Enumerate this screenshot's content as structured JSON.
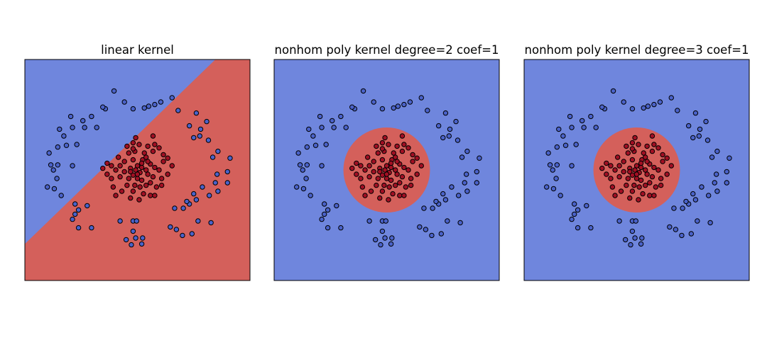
{
  "colors": {
    "class_a_region": "#6f86dd",
    "class_b_region": "#d4605b",
    "class_a_point": "#4a62c9",
    "class_b_point": "#a10f23",
    "point_edge": "#000000"
  },
  "chart_data": [
    {
      "type": "scatter",
      "title": "linear kernel",
      "xlabel": "",
      "ylabel": "",
      "xlim": [
        -1.3,
        1.3
      ],
      "ylim": [
        -1.3,
        1.3
      ],
      "axis_ticks": false,
      "grid": false,
      "decision_region": {
        "kind": "half-plane",
        "boundary_line": [
          [
            -1.3,
            -0.87
          ],
          [
            0.9,
            1.3
          ]
        ],
        "upper_left_class": "class_a",
        "lower_right_class": "class_b"
      }
    },
    {
      "type": "scatter",
      "title": "nonhom poly kernel degree=2 coef=1",
      "xlabel": "",
      "ylabel": "",
      "xlim": [
        -1.3,
        1.3
      ],
      "ylim": [
        -1.3,
        1.3
      ],
      "axis_ticks": false,
      "grid": false,
      "decision_region": {
        "kind": "disc",
        "center": [
          0.0,
          0.0
        ],
        "radius": 0.5,
        "inside_class": "class_b",
        "outside_class": "class_a"
      }
    },
    {
      "type": "scatter",
      "title": "nonhom poly kernel degree=3 coef=1",
      "xlabel": "",
      "ylabel": "",
      "xlim": [
        -1.3,
        1.3
      ],
      "ylim": [
        -1.3,
        1.3
      ],
      "axis_ticks": false,
      "grid": false,
      "decision_region": {
        "kind": "disc",
        "center": [
          0.0,
          0.0
        ],
        "radius": 0.5,
        "inside_class": "class_b",
        "outside_class": "class_a"
      }
    }
  ],
  "points": {
    "class_a": [
      [
        -0.27,
        0.93
      ],
      [
        -0.15,
        0.8
      ],
      [
        -0.05,
        0.72
      ],
      [
        0.08,
        0.73
      ],
      [
        0.13,
        0.75
      ],
      [
        0.27,
        0.8
      ],
      [
        0.2,
        0.77
      ],
      [
        -0.37,
        0.72
      ],
      [
        -0.4,
        0.74
      ],
      [
        -0.53,
        0.63
      ],
      [
        -0.63,
        0.58
      ],
      [
        -0.77,
        0.63
      ],
      [
        -0.47,
        0.5
      ],
      [
        -0.61,
        0.5
      ],
      [
        -0.75,
        0.5
      ],
      [
        -0.9,
        0.48
      ],
      [
        -0.85,
        0.4
      ],
      [
        -0.7,
        0.3
      ],
      [
        -0.82,
        0.29
      ],
      [
        -0.92,
        0.27
      ],
      [
        -0.75,
        0.05
      ],
      [
        -0.92,
        0.06
      ],
      [
        -0.97,
        0.0
      ],
      [
        -1.0,
        0.06
      ],
      [
        -1.02,
        0.2
      ],
      [
        -0.93,
        -0.1
      ],
      [
        -0.96,
        -0.22
      ],
      [
        -1.04,
        -0.2
      ],
      [
        -0.88,
        -0.3
      ],
      [
        -0.72,
        -0.4
      ],
      [
        -0.68,
        -0.47
      ],
      [
        -0.58,
        -0.42
      ],
      [
        -0.72,
        -0.52
      ],
      [
        -0.75,
        -0.58
      ],
      [
        -0.68,
        -0.68
      ],
      [
        -0.53,
        -0.68
      ],
      [
        -0.2,
        -0.6
      ],
      [
        -0.05,
        -0.6
      ],
      [
        -0.01,
        -0.6
      ],
      [
        -0.05,
        -0.72
      ],
      [
        -0.13,
        -0.82
      ],
      [
        -0.02,
        -0.8
      ],
      [
        -0.07,
        -0.88
      ],
      [
        0.06,
        -0.8
      ],
      [
        0.05,
        -0.87
      ],
      [
        0.38,
        -0.67
      ],
      [
        0.45,
        -0.7
      ],
      [
        0.52,
        -0.77
      ],
      [
        0.63,
        -0.75
      ],
      [
        0.7,
        -0.6
      ],
      [
        0.85,
        -0.62
      ],
      [
        0.53,
        -0.45
      ],
      [
        0.6,
        -0.4
      ],
      [
        0.43,
        -0.45
      ],
      [
        0.57,
        -0.37
      ],
      [
        0.68,
        -0.35
      ],
      [
        0.83,
        -0.3
      ],
      [
        0.65,
        -0.28
      ],
      [
        0.75,
        -0.2
      ],
      [
        0.9,
        -0.15
      ],
      [
        0.93,
        -0.25
      ],
      [
        1.04,
        -0.15
      ],
      [
        0.92,
        -0.05
      ],
      [
        1.04,
        -0.02
      ],
      [
        0.87,
        0.15
      ],
      [
        0.93,
        0.22
      ],
      [
        1.07,
        0.14
      ],
      [
        0.72,
        0.4
      ],
      [
        0.82,
        0.35
      ],
      [
        0.65,
        0.38
      ],
      [
        0.73,
        0.48
      ],
      [
        0.8,
        0.57
      ],
      [
        0.6,
        0.52
      ],
      [
        0.68,
        0.67
      ],
      [
        0.47,
        0.7
      ],
      [
        0.4,
        0.85
      ]
    ],
    "class_b": [
      [
        -0.05,
        0.32
      ],
      [
        0.02,
        0.3
      ],
      [
        -0.03,
        0.22
      ],
      [
        0.12,
        0.28
      ],
      [
        0.18,
        0.22
      ],
      [
        0.2,
        0.3
      ],
      [
        0.25,
        0.26
      ],
      [
        -0.1,
        0.2
      ],
      [
        -0.05,
        0.12
      ],
      [
        0.06,
        0.12
      ],
      [
        0.1,
        0.15
      ],
      [
        -0.15,
        0.1
      ],
      [
        -0.2,
        0.05
      ],
      [
        0.0,
        0.05
      ],
      [
        0.05,
        0.03
      ],
      [
        0.15,
        0.07
      ],
      [
        0.2,
        0.03
      ],
      [
        0.25,
        0.0
      ],
      [
        0.3,
        0.1
      ],
      [
        0.35,
        0.14
      ],
      [
        -0.3,
        0.05
      ],
      [
        -0.35,
        0.08
      ],
      [
        -0.25,
        0.0
      ],
      [
        -0.15,
        -0.02
      ],
      [
        -0.08,
        0.02
      ],
      [
        -0.02,
        0.0
      ],
      [
        0.03,
        -0.03
      ],
      [
        0.1,
        0.0
      ],
      [
        0.12,
        -0.05
      ],
      [
        0.18,
        -0.08
      ],
      [
        0.28,
        -0.1
      ],
      [
        -0.3,
        -0.1
      ],
      [
        -0.2,
        -0.08
      ],
      [
        -0.1,
        -0.1
      ],
      [
        -0.05,
        -0.06
      ],
      [
        0.0,
        -0.1
      ],
      [
        0.05,
        -0.12
      ],
      [
        -0.12,
        -0.18
      ],
      [
        -0.03,
        -0.18
      ],
      [
        0.03,
        -0.2
      ],
      [
        0.1,
        -0.18
      ],
      [
        0.15,
        -0.15
      ],
      [
        0.22,
        -0.2
      ],
      [
        -0.18,
        -0.25
      ],
      [
        -0.05,
        -0.25
      ],
      [
        0.07,
        -0.28
      ],
      [
        0.15,
        -0.3
      ],
      [
        -0.08,
        -0.33
      ],
      [
        -0.25,
        -0.3
      ],
      [
        0.35,
        -0.05
      ],
      [
        -0.35,
        -0.05
      ],
      [
        -0.02,
        0.38
      ],
      [
        0.18,
        0.4
      ],
      [
        -0.12,
        0.28
      ],
      [
        0.08,
        0.2
      ],
      [
        -0.22,
        0.15
      ],
      [
        0.28,
        -0.18
      ],
      [
        -0.28,
        -0.2
      ],
      [
        0.05,
        0.08
      ],
      [
        -0.08,
        -0.02
      ],
      [
        0.12,
        0.1
      ],
      [
        -0.05,
        0.25
      ],
      [
        0.3,
        0.18
      ],
      [
        0.02,
        -0.35
      ],
      [
        0.2,
        -0.3
      ],
      [
        0.4,
        0.05
      ],
      [
        -0.4,
        0.02
      ],
      [
        0.0,
        -0.05
      ]
    ]
  }
}
